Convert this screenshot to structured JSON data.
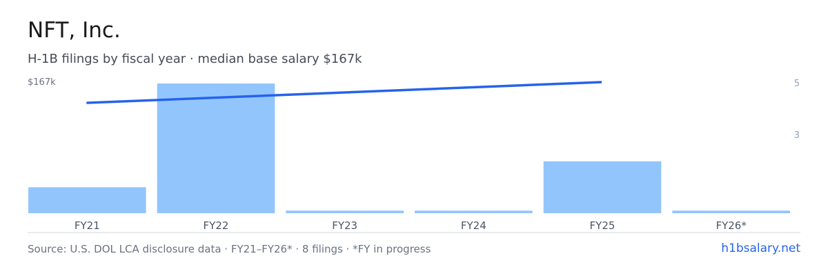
{
  "header": {
    "title": "NFT, Inc.",
    "subtitle": "H-1B filings by fiscal year · median base salary $167k"
  },
  "footer": {
    "source": "Source: U.S. DOL LCA disclosure data · FY21–FY26* · 8 filings · *FY in progress",
    "brand": "h1bsalary.net"
  },
  "colors": {
    "bar": "#93c5fd",
    "line": "#2563eb",
    "axis": "#d1d5db",
    "tick": "#4b5563",
    "right_tick": "#94a3b8"
  },
  "chart_data": {
    "type": "bar",
    "categories": [
      "FY21",
      "FY22",
      "FY23",
      "FY24",
      "FY25",
      "FY26*"
    ],
    "values": [
      1,
      5,
      0.1,
      0.1,
      2,
      0.1
    ],
    "ylim": [
      0,
      5
    ],
    "right_axis_ticks": [
      "5",
      "3"
    ],
    "left_axis_label": "$167k",
    "line": {
      "x": [
        "FY21",
        "FY25"
      ],
      "values": [
        4.2,
        5.0
      ]
    },
    "grid": false,
    "legend": "none"
  }
}
